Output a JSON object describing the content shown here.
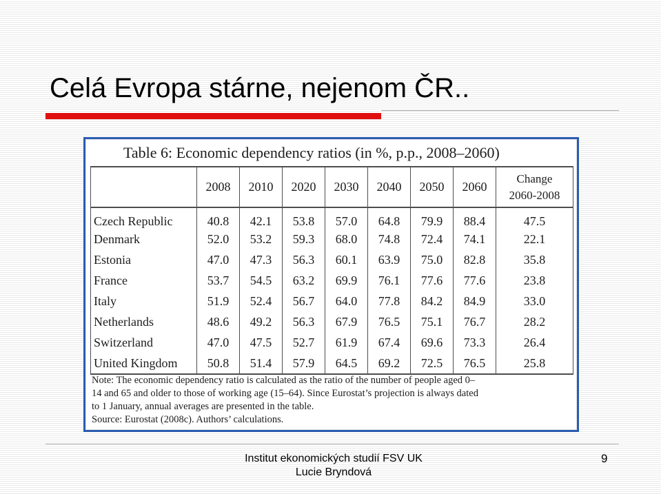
{
  "slide": {
    "title": "Celá Evropa stárne, nejenom ČR..",
    "page_number": "9",
    "footer": {
      "line1": "Institut ekonomických studií FSV UK",
      "line2": "Lucie Bryndová"
    },
    "colors": {
      "title_rule": "#e01010",
      "table_frame": "#2a5cb0"
    }
  },
  "table": {
    "title": "Table 6: Economic dependency ratios (in %, p.p., 2008–2060)",
    "columns": [
      "2008",
      "2010",
      "2020",
      "2030",
      "2040",
      "2050",
      "2060"
    ],
    "change_header_line1": "Change",
    "change_header_line2": "2060-2008",
    "rows": [
      {
        "country": "Czech Republic",
        "values": [
          "40.8",
          "42.1",
          "53.8",
          "57.0",
          "64.8",
          "79.9",
          "88.4"
        ],
        "change": "47.5"
      },
      {
        "country": "Denmark",
        "values": [
          "52.0",
          "53.2",
          "59.3",
          "68.0",
          "74.8",
          "72.4",
          "74.1"
        ],
        "change": "22.1"
      },
      {
        "country": "Estonia",
        "values": [
          "47.0",
          "47.3",
          "56.3",
          "60.1",
          "63.9",
          "75.0",
          "82.8"
        ],
        "change": "35.8"
      },
      {
        "country": "France",
        "values": [
          "53.7",
          "54.5",
          "63.2",
          "69.9",
          "76.1",
          "77.6",
          "77.6"
        ],
        "change": "23.8"
      },
      {
        "country": "Italy",
        "values": [
          "51.9",
          "52.4",
          "56.7",
          "64.0",
          "77.8",
          "84.2",
          "84.9"
        ],
        "change": "33.0"
      },
      {
        "country": "Netherlands",
        "values": [
          "48.6",
          "49.2",
          "56.3",
          "67.9",
          "76.5",
          "75.1",
          "76.7"
        ],
        "change": "28.2"
      },
      {
        "country": "Switzerland",
        "values": [
          "47.0",
          "47.5",
          "52.7",
          "61.9",
          "67.4",
          "69.6",
          "73.3"
        ],
        "change": "26.4"
      },
      {
        "country": "United Kingdom",
        "values": [
          "50.8",
          "51.4",
          "57.9",
          "64.5",
          "69.2",
          "72.5",
          "76.5"
        ],
        "change": "25.8"
      }
    ],
    "note_lines": [
      "Note: The economic dependency ratio is calculated as the ratio of the number of people aged 0–",
      "14 and 65 and older to those of working age (15–64). Since Eurostat’s projection is always dated",
      "to 1 January, annual averages are presented in the table.",
      "Source: Eurostat (2008c). Authors’ calculations."
    ]
  }
}
